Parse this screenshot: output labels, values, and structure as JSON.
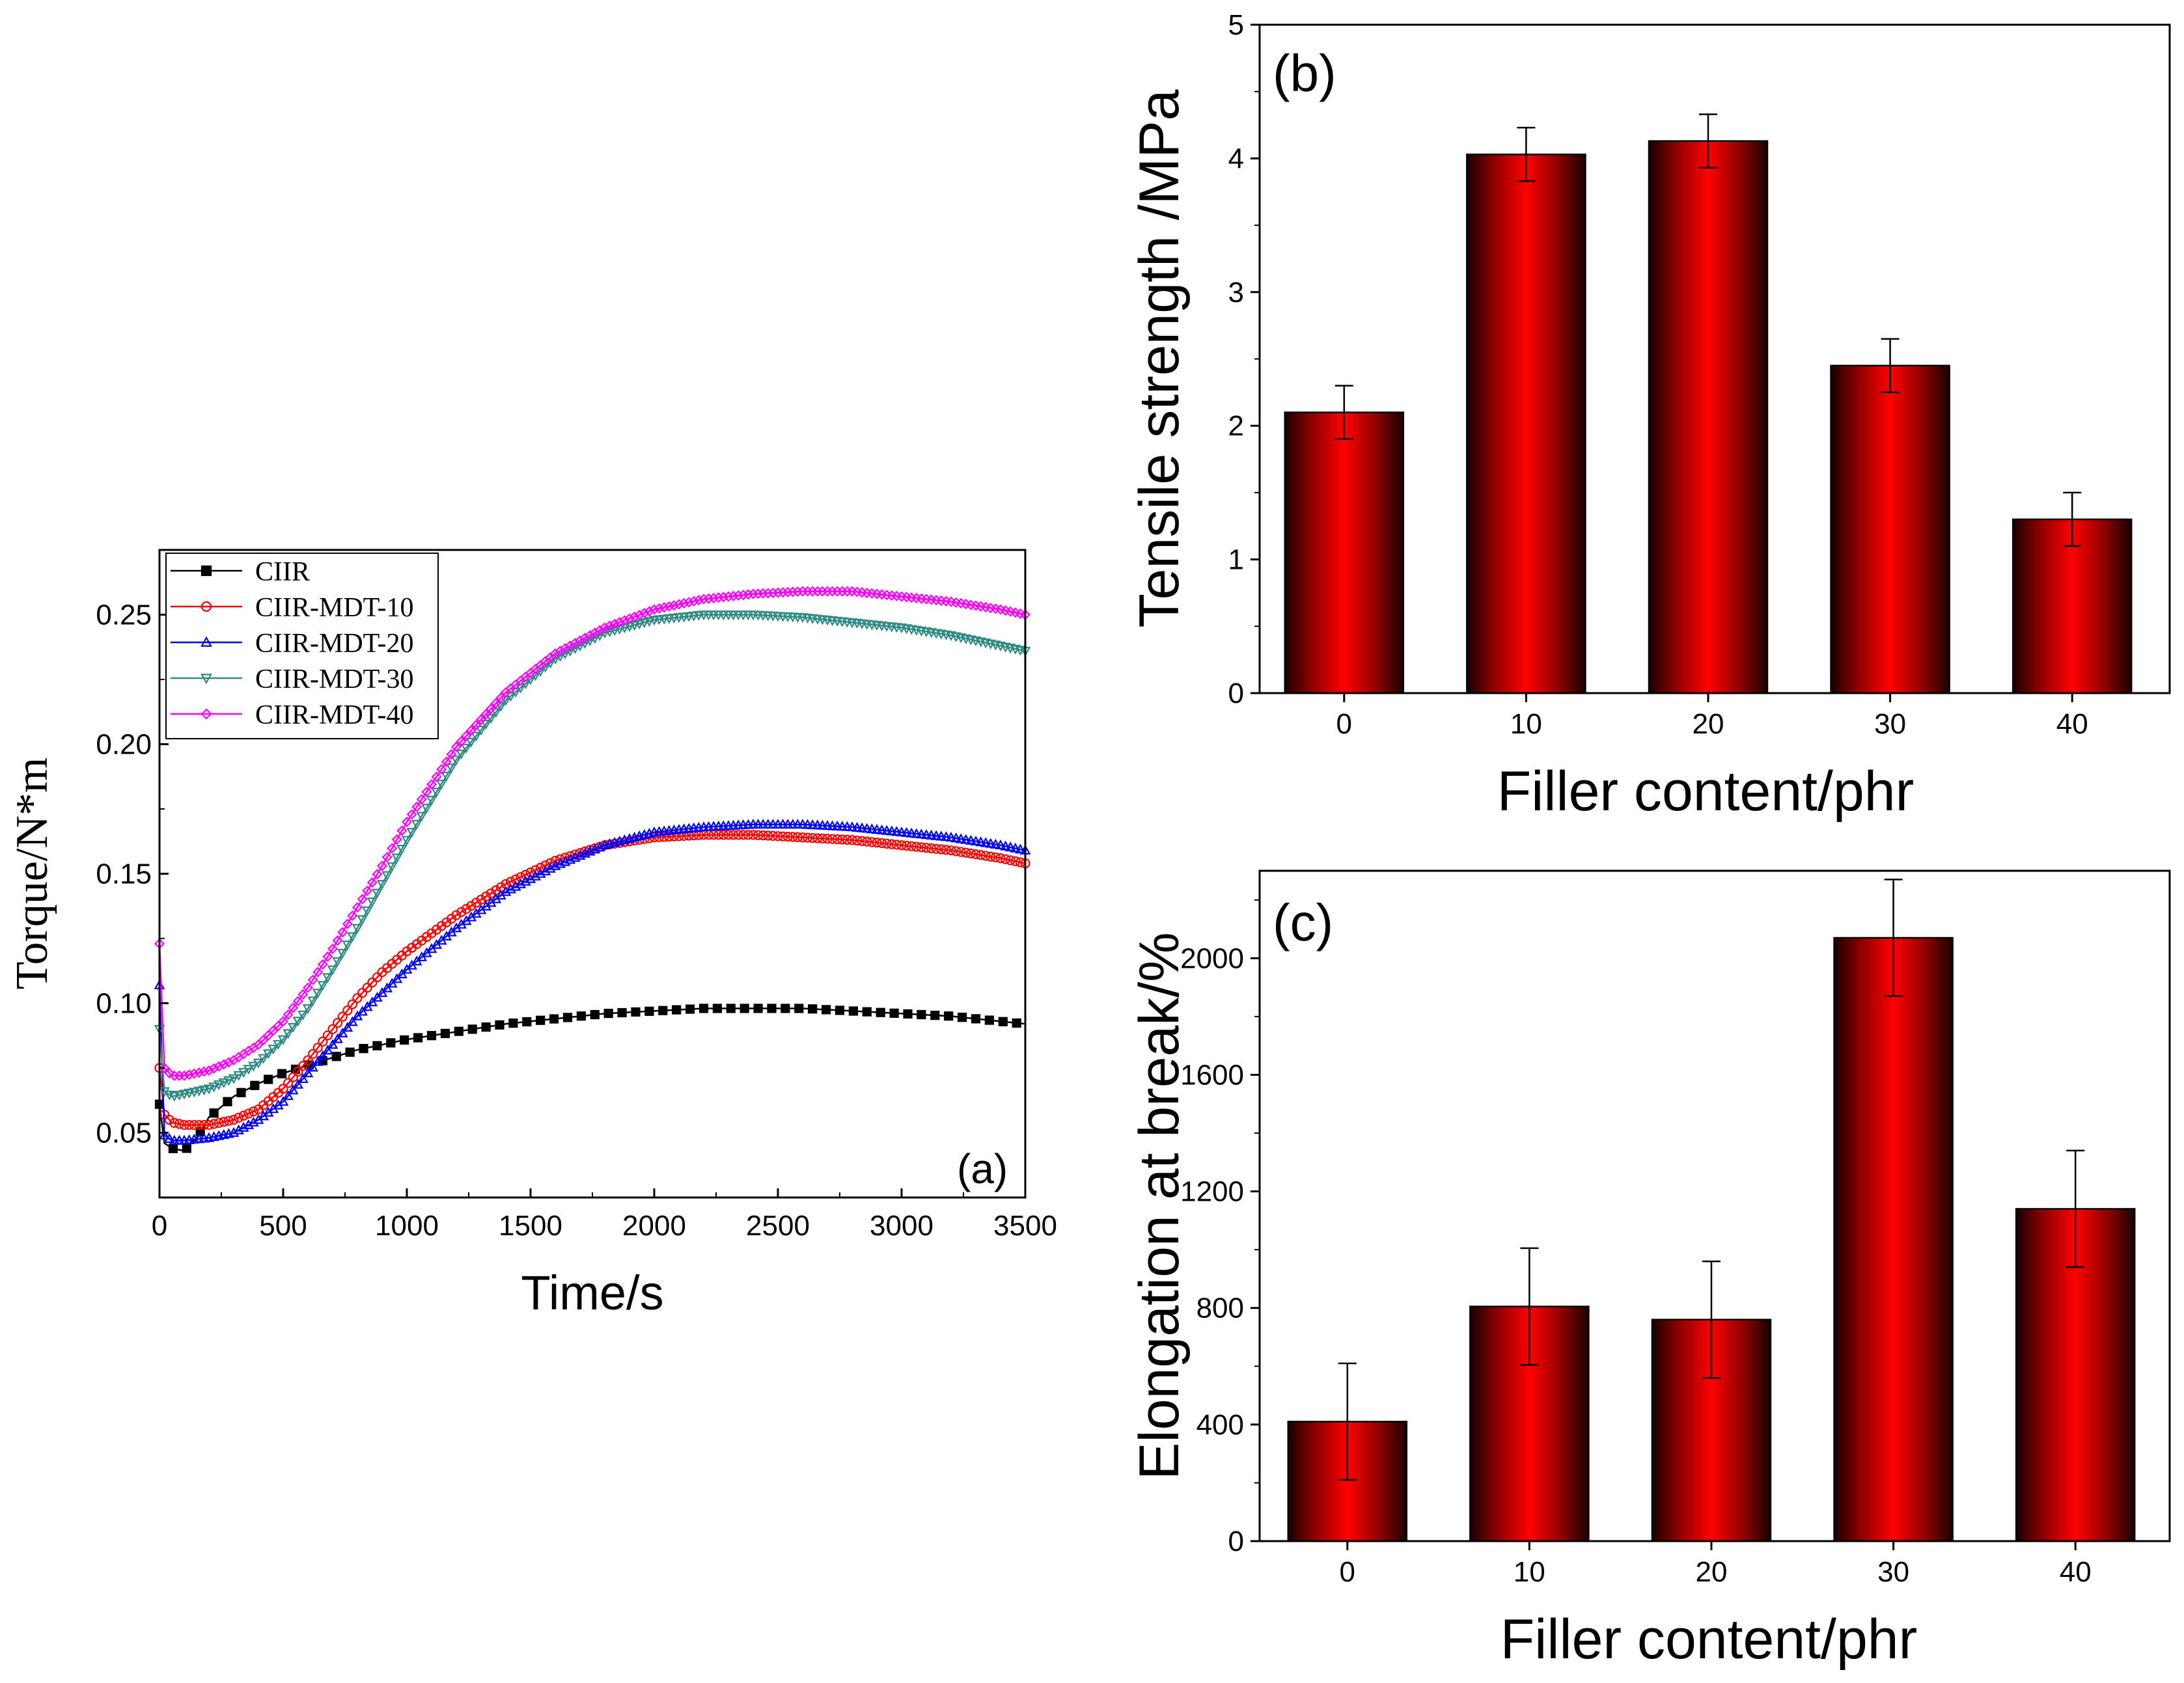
{
  "chart_data": [
    {
      "id": "a",
      "type": "line",
      "panel_label": "(a)",
      "xlabel": "Time/s",
      "ylabel": "Torque/N*m",
      "xlim": [
        0,
        3500
      ],
      "ylim": [
        0.025,
        0.275
      ],
      "xticks": [
        "0",
        "500",
        "1000",
        "1500",
        "2000",
        "2500",
        "3000",
        "3500"
      ],
      "yticks": [
        "0.05",
        "0.10",
        "0.15",
        "0.20",
        "0.25"
      ],
      "legend_position": "top-left",
      "series": [
        {
          "name": "CIIR",
          "color": "#000000",
          "marker": "square",
          "x": [
            0,
            20,
            50,
            100,
            150,
            200,
            300,
            400,
            500,
            600,
            700,
            800,
            900,
            1000,
            1200,
            1400,
            1600,
            1800,
            2000,
            2200,
            2400,
            2600,
            2800,
            3000,
            3200,
            3400,
            3500
          ],
          "y": [
            0.061,
            0.046,
            0.044,
            0.043,
            0.048,
            0.056,
            0.064,
            0.069,
            0.073,
            0.076,
            0.079,
            0.082,
            0.084,
            0.086,
            0.089,
            0.092,
            0.094,
            0.096,
            0.097,
            0.098,
            0.098,
            0.098,
            0.097,
            0.096,
            0.095,
            0.093,
            0.092
          ]
        },
        {
          "name": "CIIR-MDT-10",
          "color": "#ff0000",
          "marker": "circle",
          "x": [
            0,
            20,
            50,
            100,
            200,
            300,
            400,
            500,
            600,
            700,
            800,
            900,
            1000,
            1200,
            1400,
            1600,
            1800,
            2000,
            2200,
            2400,
            2600,
            2800,
            3000,
            3200,
            3400,
            3500
          ],
          "y": [
            0.075,
            0.057,
            0.054,
            0.053,
            0.053,
            0.055,
            0.059,
            0.067,
            0.078,
            0.09,
            0.102,
            0.112,
            0.12,
            0.134,
            0.146,
            0.155,
            0.161,
            0.164,
            0.165,
            0.165,
            0.164,
            0.163,
            0.161,
            0.159,
            0.156,
            0.154
          ]
        },
        {
          "name": "CIIR-MDT-20",
          "color": "#0000ff",
          "marker": "triangle-up",
          "x": [
            0,
            20,
            50,
            100,
            200,
            300,
            400,
            500,
            600,
            700,
            800,
            900,
            1000,
            1200,
            1400,
            1600,
            1800,
            2000,
            2200,
            2400,
            2600,
            2800,
            3000,
            3200,
            3400,
            3500
          ],
          "y": [
            0.107,
            0.049,
            0.047,
            0.047,
            0.048,
            0.05,
            0.055,
            0.062,
            0.073,
            0.084,
            0.095,
            0.104,
            0.113,
            0.129,
            0.143,
            0.153,
            0.161,
            0.166,
            0.168,
            0.169,
            0.169,
            0.168,
            0.166,
            0.164,
            0.161,
            0.159
          ]
        },
        {
          "name": "CIIR-MDT-30",
          "color": "#2e8b84",
          "marker": "triangle-down",
          "x": [
            0,
            20,
            50,
            100,
            200,
            300,
            400,
            500,
            600,
            700,
            800,
            900,
            1000,
            1200,
            1400,
            1600,
            1800,
            2000,
            2200,
            2400,
            2600,
            2800,
            3000,
            3200,
            3400,
            3500
          ],
          "y": [
            0.09,
            0.066,
            0.064,
            0.065,
            0.067,
            0.071,
            0.077,
            0.086,
            0.098,
            0.113,
            0.129,
            0.146,
            0.163,
            0.194,
            0.217,
            0.233,
            0.243,
            0.248,
            0.25,
            0.25,
            0.249,
            0.247,
            0.245,
            0.242,
            0.238,
            0.236
          ]
        },
        {
          "name": "CIIR-MDT-40",
          "color": "#ff00ff",
          "marker": "diamond",
          "x": [
            0,
            20,
            50,
            100,
            200,
            300,
            400,
            500,
            600,
            700,
            800,
            900,
            1000,
            1200,
            1400,
            1600,
            1800,
            2000,
            2200,
            2400,
            2600,
            2800,
            3000,
            3200,
            3400,
            3500
          ],
          "y": [
            0.123,
            0.075,
            0.072,
            0.072,
            0.074,
            0.078,
            0.084,
            0.093,
            0.106,
            0.121,
            0.137,
            0.153,
            0.17,
            0.199,
            0.22,
            0.235,
            0.245,
            0.252,
            0.256,
            0.258,
            0.259,
            0.259,
            0.257,
            0.255,
            0.252,
            0.25
          ]
        }
      ]
    },
    {
      "id": "b",
      "type": "bar",
      "panel_label": "(b)",
      "xlabel": "Filler content/phr",
      "ylabel": "Tensile strength /MPa",
      "categories": [
        "0",
        "10",
        "20",
        "30",
        "40"
      ],
      "values": [
        2.1,
        4.03,
        4.13,
        2.45,
        1.3
      ],
      "errors": [
        0.2,
        0.2,
        0.2,
        0.2,
        0.2
      ],
      "ylim": [
        0,
        5
      ],
      "yticks": [
        "0",
        "1",
        "2",
        "3",
        "4",
        "5"
      ]
    },
    {
      "id": "c",
      "type": "bar",
      "panel_label": "(c)",
      "xlabel": "Filler content/phr",
      "ylabel": "Elongation at break/%",
      "categories": [
        "0",
        "10",
        "20",
        "30",
        "40"
      ],
      "values": [
        410,
        805,
        760,
        2070,
        1140
      ],
      "errors": [
        200,
        200,
        200,
        200,
        200
      ],
      "ylim": [
        0,
        2300
      ],
      "yticks": [
        "0",
        "400",
        "800",
        "1200",
        "1600",
        "2000"
      ]
    }
  ]
}
